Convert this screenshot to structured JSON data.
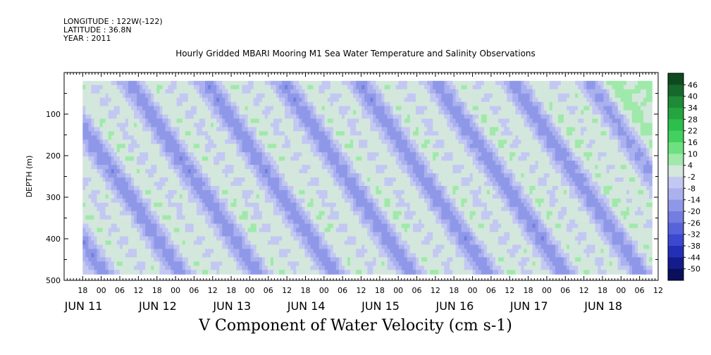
{
  "header": {
    "longitude": "LONGITUDE : 122W(-122)",
    "latitude": "LATITUDE : 36.8N",
    "year": "YEAR : 2011"
  },
  "chart_data": {
    "type": "heatmap",
    "title": "Hourly Gridded MBARI Mooring M1 Sea Water Temperature and Salinity Observations",
    "xlabel": "V Component of Water Velocity (cm s-1)",
    "ylabel": "DEPTH (m)",
    "ylim": [
      500,
      0
    ],
    "y_ticks": [
      100,
      200,
      300,
      400,
      500
    ],
    "hour_tick_labels": [
      "18",
      "00",
      "06",
      "12",
      "18",
      "00",
      "06",
      "12",
      "18",
      "00",
      "06",
      "12",
      "18",
      "00",
      "06",
      "12",
      "18",
      "00",
      "06",
      "12",
      "18",
      "00",
      "06",
      "12",
      "18",
      "00",
      "06",
      "12",
      "18",
      "00",
      "06",
      "12"
    ],
    "day_labels": [
      "JUN 11",
      "JUN 12",
      "JUN 13",
      "JUN 14",
      "JUN 15",
      "JUN 16",
      "JUN 17",
      "JUN 18"
    ],
    "colorbar": {
      "labels": [
        "46",
        "40",
        "34",
        "28",
        "22",
        "16",
        "10",
        "4",
        "-2",
        "-8",
        "-14",
        "-20",
        "-26",
        "-32",
        "-38",
        "-44",
        "-50"
      ],
      "colors": [
        "#0e4a1e",
        "#17682b",
        "#1f8a37",
        "#25a540",
        "#2dbf4b",
        "#42d15e",
        "#6ee07f",
        "#9fe9aa",
        "#d3e7dc",
        "#c3c8f2",
        "#aab1ee",
        "#8f98e8",
        "#737ee0",
        "#5763d8",
        "#3b48d0",
        "#2330b6",
        "#141c8c",
        "#0a0f5c"
      ]
    },
    "data_start": "2011-06-10 21:00",
    "data_end": "2011-06-18 13:00",
    "depth_range": [
      20,
      485
    ]
  }
}
